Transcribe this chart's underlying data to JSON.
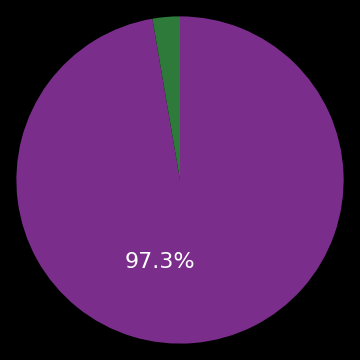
{
  "slices": [
    97.3,
    2.7
  ],
  "colors": [
    "#7b2d8b",
    "#2d7a3a"
  ],
  "label": "97.3%",
  "label_color": "#ffffff",
  "label_fontsize": 16,
  "background_color": "#000000",
  "startangle": 90,
  "figsize": [
    3.6,
    3.6
  ],
  "dpi": 100
}
